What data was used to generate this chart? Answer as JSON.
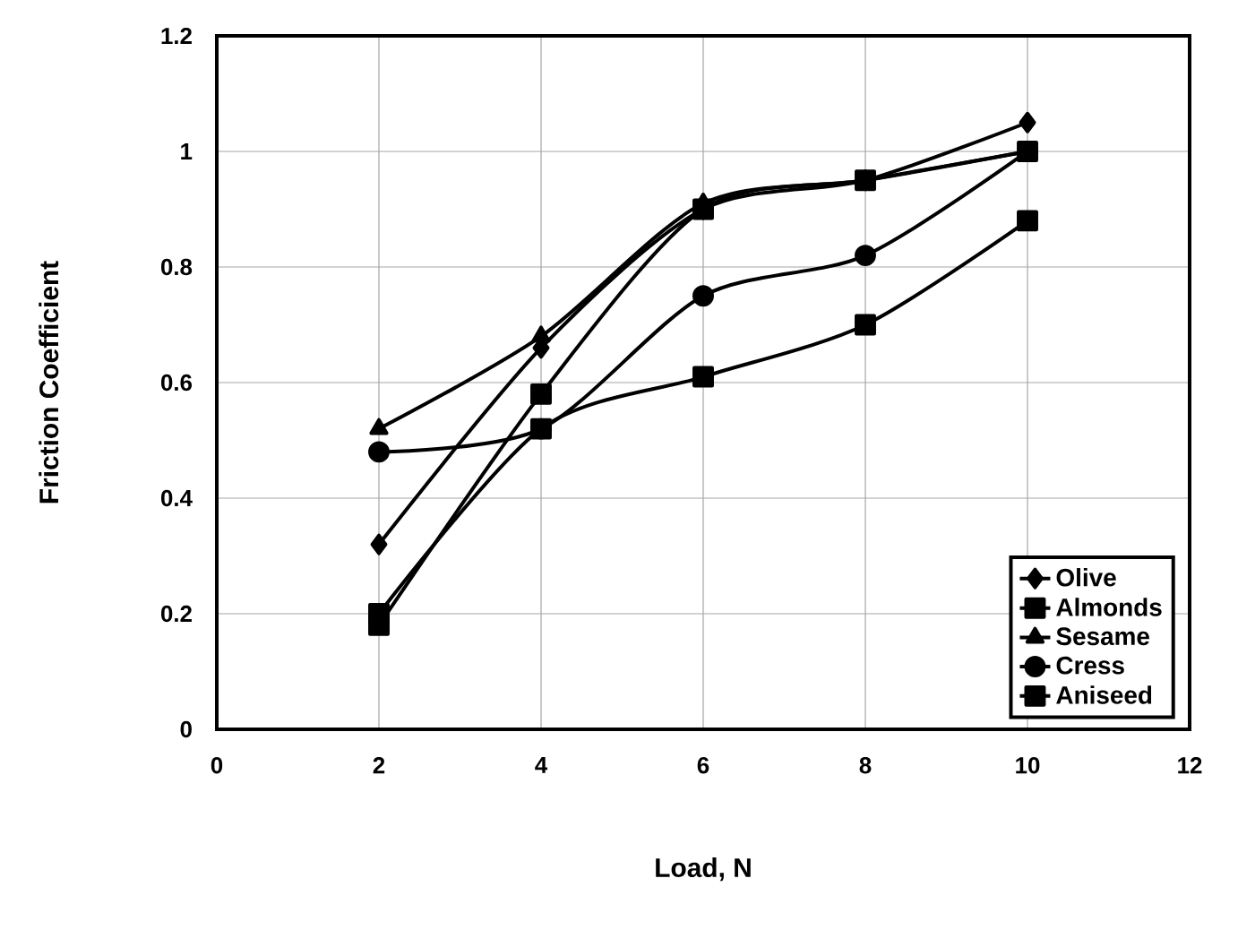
{
  "chart_data": {
    "type": "line",
    "xlabel": "Load, N",
    "ylabel": "Friction Coefficient",
    "x": [
      2,
      4,
      6,
      8,
      10
    ],
    "series": [
      {
        "name": "Olive",
        "color": "#000000",
        "marker": "diamond",
        "values": [
          0.32,
          0.66,
          0.9,
          0.95,
          1.05
        ]
      },
      {
        "name": "Almonds",
        "color": "#000000",
        "marker": "square",
        "values": [
          0.18,
          0.58,
          0.9,
          0.95,
          1.0
        ]
      },
      {
        "name": "Sesame",
        "color": "#000000",
        "marker": "triangle",
        "values": [
          0.52,
          0.68,
          0.91,
          0.95,
          1.0
        ]
      },
      {
        "name": "Cress",
        "color": "#000000",
        "marker": "circle",
        "values": [
          0.48,
          0.52,
          0.75,
          0.82,
          1.0
        ]
      },
      {
        "name": "Aniseed",
        "color": "#000000",
        "marker": "square",
        "values": [
          0.2,
          0.52,
          0.61,
          0.7,
          0.88
        ]
      }
    ],
    "xlim": [
      0,
      12
    ],
    "xticks": [
      0,
      2,
      4,
      6,
      8,
      10,
      12
    ],
    "ylim": [
      0,
      1.2
    ],
    "yticks": [
      0,
      0.2,
      0.4,
      0.6,
      0.8,
      1,
      1.2
    ],
    "grid": true,
    "legend": "bottom right",
    "line_style": "solid"
  }
}
